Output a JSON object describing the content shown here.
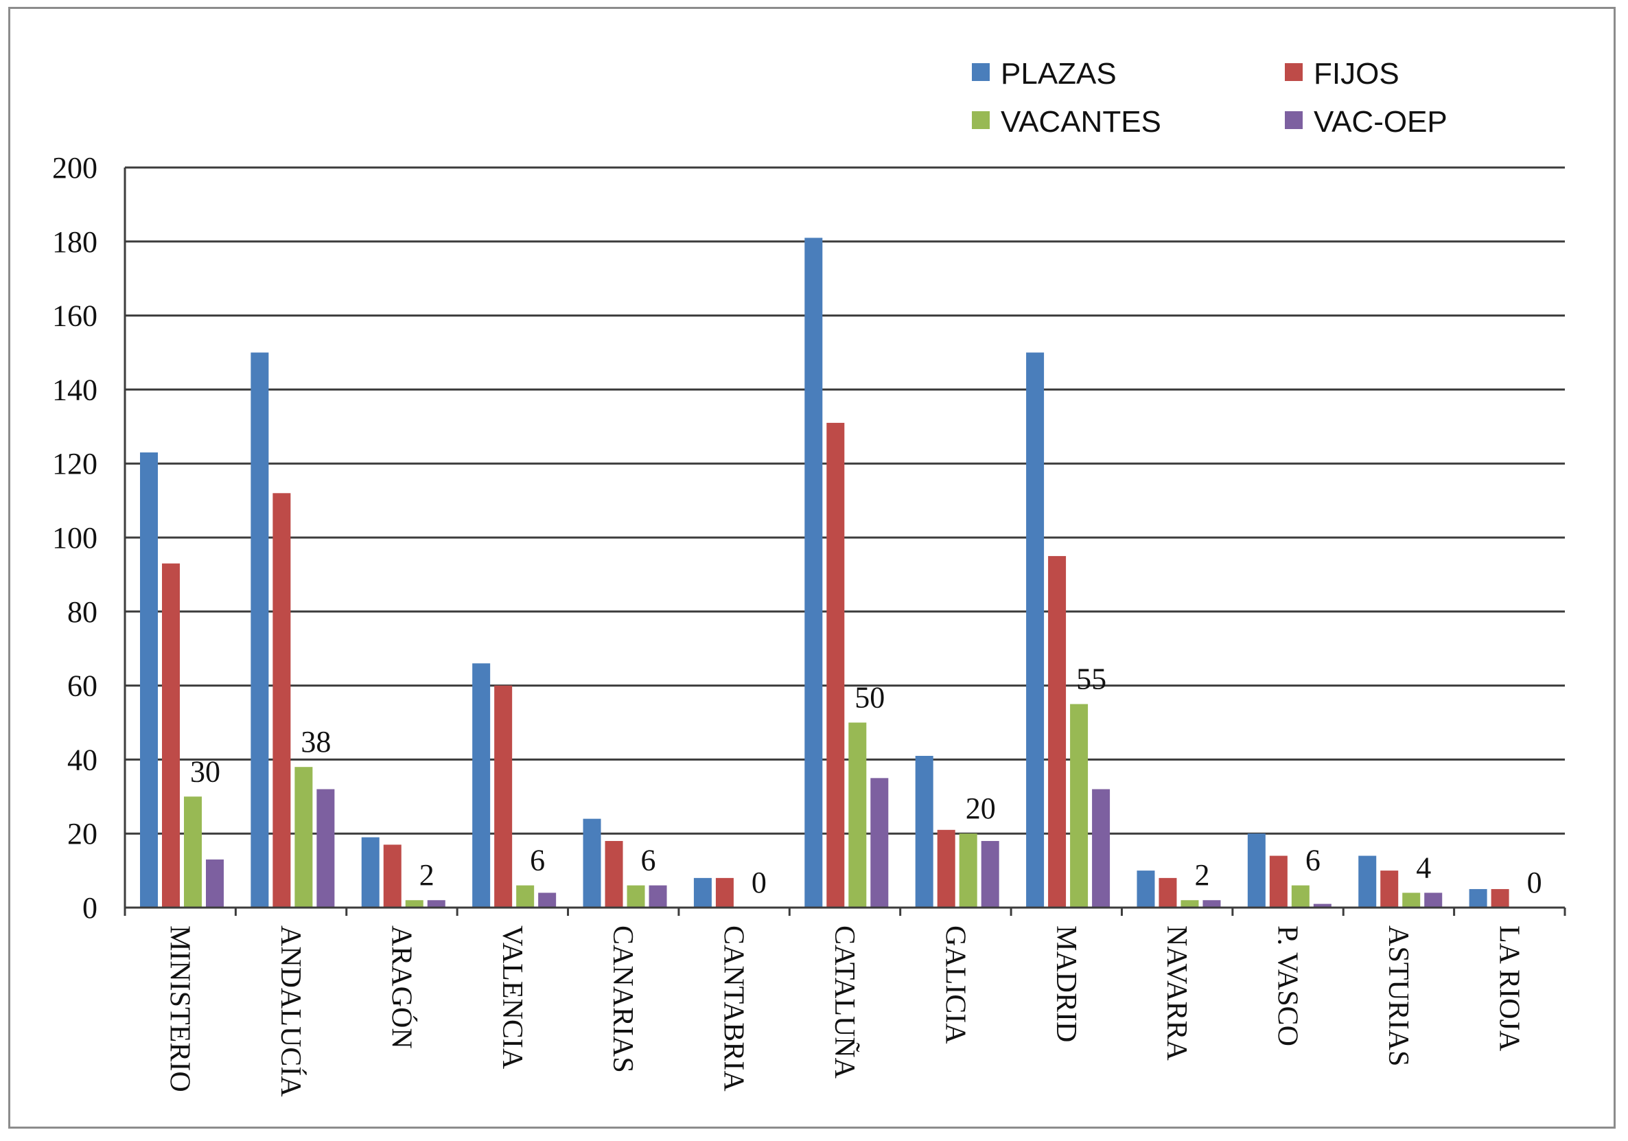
{
  "chart_data": {
    "type": "bar",
    "title": "",
    "xlabel": "",
    "ylabel": "",
    "ylim": [
      0,
      200
    ],
    "yticks": [
      "0",
      "20",
      "40",
      "60",
      "80",
      "100",
      "120",
      "140",
      "160",
      "180",
      "200"
    ],
    "grid": true,
    "legend_position": "top-right",
    "categories": [
      "MINISTERIO",
      "ANDALUCÍA",
      "ARAGÓN",
      "VALENCIA",
      "CANARIAS",
      "CANTABRIA",
      "CATALUÑA",
      "GALICIA",
      "MADRID",
      "NAVARRA",
      "P. VASCO",
      "ASTURIAS",
      "LA RIOJA"
    ],
    "series": [
      {
        "name": "PLAZAS",
        "color": "#4a7ebb",
        "values": [
          123,
          150,
          19,
          66,
          24,
          8,
          181,
          41,
          150,
          10,
          20,
          14,
          5
        ]
      },
      {
        "name": "FIJOS",
        "color": "#be4b48",
        "values": [
          93,
          112,
          17,
          60,
          18,
          8,
          131,
          21,
          95,
          8,
          14,
          10,
          5
        ]
      },
      {
        "name": "VACANTES",
        "color": "#98b954",
        "values": [
          30,
          38,
          2,
          6,
          6,
          0,
          50,
          20,
          55,
          2,
          6,
          4,
          0
        ]
      },
      {
        "name": "VAC-OEP",
        "color": "#7d60a0",
        "values": [
          13,
          32,
          2,
          4,
          6,
          0,
          35,
          18,
          32,
          2,
          1,
          4,
          0
        ]
      }
    ],
    "data_labels": {
      "series": "VACANTES",
      "labels": [
        "30",
        "38",
        "2",
        "6",
        "6",
        "0",
        "50",
        "20",
        "55",
        "2",
        "6",
        "4",
        "0"
      ]
    }
  }
}
